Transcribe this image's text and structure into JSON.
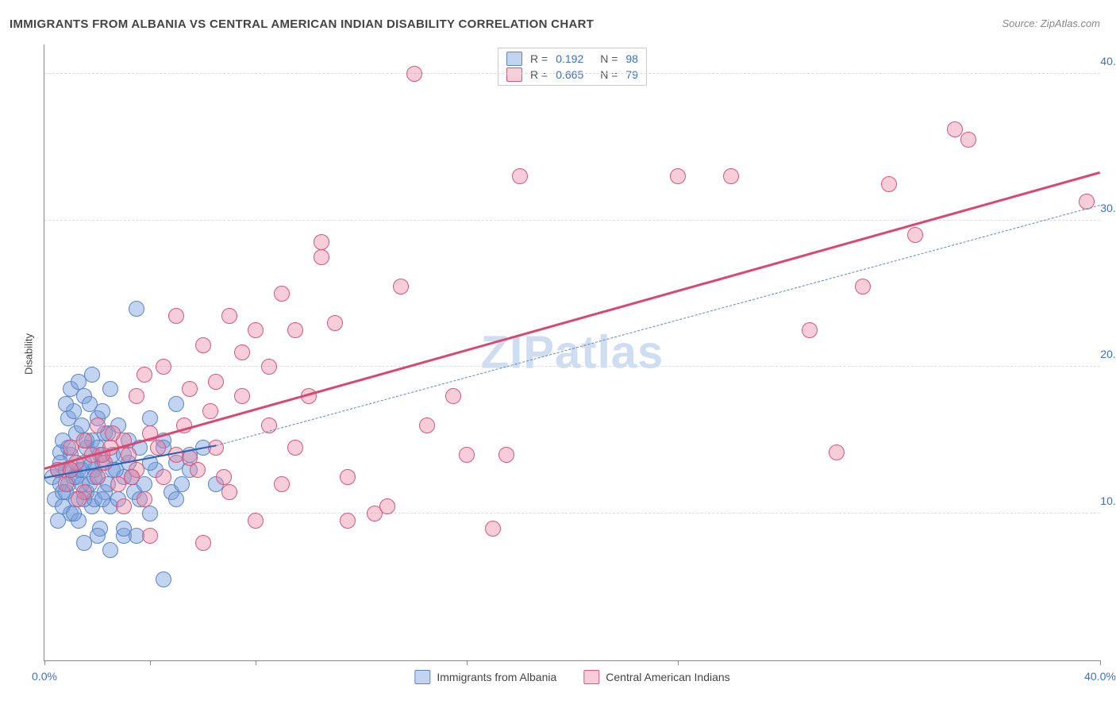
{
  "title": "IMMIGRANTS FROM ALBANIA VS CENTRAL AMERICAN INDIAN DISABILITY CORRELATION CHART",
  "source": "Source: ZipAtlas.com",
  "ylabel": "Disability",
  "watermark": "ZIPatlas",
  "chart": {
    "type": "scatter",
    "xlim": [
      0,
      40
    ],
    "ylim": [
      0,
      42
    ],
    "xtick_positions": [
      0,
      4,
      8,
      16,
      24,
      40
    ],
    "xtick_labels": {
      "0": "0.0%",
      "40": "40.0%"
    },
    "ytick_positions": [
      10,
      20,
      30,
      40
    ],
    "ytick_labels": [
      "10.0%",
      "20.0%",
      "30.0%",
      "40.0%"
    ],
    "grid_color": "#dddddd",
    "background_color": "#ffffff",
    "marker_radius": 9,
    "series": [
      {
        "name": "Immigrants from Albania",
        "key": "albania",
        "fill": "rgba(120,160,220,0.45)",
        "stroke": "#5a86c9",
        "R": "0.192",
        "N": "98",
        "trend": {
          "x1": 0,
          "y1": 12.4,
          "x2": 6.5,
          "y2": 14.6,
          "color": "#2f5fb0",
          "width": 2,
          "dash": false
        },
        "trend_ext": {
          "x1": 6.5,
          "y1": 14.6,
          "x2": 40,
          "y2": 31.0,
          "color": "#5a86c9",
          "width": 1.4,
          "dash": true
        },
        "points": [
          [
            0.3,
            12.5
          ],
          [
            0.4,
            11.0
          ],
          [
            0.5,
            13.0
          ],
          [
            0.6,
            12.0
          ],
          [
            0.6,
            14.2
          ],
          [
            0.7,
            10.5
          ],
          [
            0.7,
            15.0
          ],
          [
            0.8,
            11.5
          ],
          [
            0.8,
            13.0
          ],
          [
            0.9,
            16.5
          ],
          [
            0.9,
            12.0
          ],
          [
            1.0,
            10.0
          ],
          [
            1.0,
            14.0
          ],
          [
            1.1,
            17.0
          ],
          [
            1.1,
            12.5
          ],
          [
            1.2,
            11.0
          ],
          [
            1.2,
            15.5
          ],
          [
            1.3,
            13.0
          ],
          [
            1.3,
            9.5
          ],
          [
            1.4,
            16.0
          ],
          [
            1.4,
            12.0
          ],
          [
            1.5,
            18.0
          ],
          [
            1.5,
            13.5
          ],
          [
            1.6,
            11.5
          ],
          [
            1.6,
            14.5
          ],
          [
            1.7,
            12.0
          ],
          [
            1.7,
            17.5
          ],
          [
            1.8,
            10.5
          ],
          [
            1.8,
            15.0
          ],
          [
            1.9,
            13.0
          ],
          [
            1.9,
            11.0
          ],
          [
            2.0,
            16.5
          ],
          [
            2.0,
            12.5
          ],
          [
            2.1,
            14.0
          ],
          [
            2.1,
            9.0
          ],
          [
            2.2,
            13.5
          ],
          [
            2.2,
            17.0
          ],
          [
            2.3,
            11.5
          ],
          [
            2.3,
            15.5
          ],
          [
            2.4,
            12.0
          ],
          [
            2.5,
            18.5
          ],
          [
            2.5,
            10.5
          ],
          [
            2.6,
            14.0
          ],
          [
            2.6,
            13.0
          ],
          [
            2.8,
            11.0
          ],
          [
            2.8,
            16.0
          ],
          [
            3.0,
            12.5
          ],
          [
            3.0,
            8.5
          ],
          [
            3.2,
            15.0
          ],
          [
            3.2,
            13.5
          ],
          [
            3.4,
            11.5
          ],
          [
            3.6,
            14.5
          ],
          [
            3.8,
            12.0
          ],
          [
            4.0,
            16.5
          ],
          [
            4.0,
            10.0
          ],
          [
            4.2,
            13.0
          ],
          [
            4.5,
            15.0
          ],
          [
            4.8,
            11.5
          ],
          [
            5.0,
            17.5
          ],
          [
            5.0,
            13.5
          ],
          [
            5.2,
            12.0
          ],
          [
            5.5,
            14.0
          ],
          [
            3.5,
            24.0
          ],
          [
            1.0,
            18.5
          ],
          [
            1.3,
            19.0
          ],
          [
            1.5,
            8.0
          ],
          [
            1.8,
            19.5
          ],
          [
            2.0,
            8.5
          ],
          [
            2.5,
            7.5
          ],
          [
            0.5,
            9.5
          ],
          [
            0.8,
            17.5
          ],
          [
            4.5,
            5.5
          ],
          [
            3.0,
            9.0
          ],
          [
            3.5,
            8.5
          ],
          [
            1.0,
            13.0
          ],
          [
            1.2,
            12.5
          ],
          [
            1.5,
            11.0
          ],
          [
            1.8,
            13.5
          ],
          [
            2.0,
            14.5
          ],
          [
            0.7,
            11.5
          ],
          [
            0.6,
            13.5
          ],
          [
            0.9,
            14.5
          ],
          [
            1.1,
            10.0
          ],
          [
            1.4,
            13.0
          ],
          [
            1.6,
            15.0
          ],
          [
            1.9,
            12.5
          ],
          [
            2.2,
            11.0
          ],
          [
            2.4,
            15.5
          ],
          [
            2.7,
            13.0
          ],
          [
            3.0,
            14.0
          ],
          [
            3.3,
            12.5
          ],
          [
            3.6,
            11.0
          ],
          [
            4.0,
            13.5
          ],
          [
            4.5,
            14.5
          ],
          [
            5.0,
            11.0
          ],
          [
            5.5,
            13.0
          ],
          [
            6.0,
            14.5
          ],
          [
            6.5,
            12.0
          ]
        ]
      },
      {
        "name": "Central American Indians",
        "key": "central",
        "fill": "rgba(235,130,160,0.40)",
        "stroke": "#d4577f",
        "R": "0.665",
        "N": "79",
        "trend": {
          "x1": 0,
          "y1": 13.0,
          "x2": 40,
          "y2": 33.2,
          "color": "#d9486f",
          "width": 2.5,
          "dash": false
        },
        "points": [
          [
            0.5,
            13.0
          ],
          [
            0.8,
            12.0
          ],
          [
            1.0,
            14.5
          ],
          [
            1.2,
            13.5
          ],
          [
            1.5,
            15.0
          ],
          [
            1.5,
            11.5
          ],
          [
            1.8,
            14.0
          ],
          [
            2.0,
            12.5
          ],
          [
            2.0,
            16.0
          ],
          [
            2.3,
            13.5
          ],
          [
            2.5,
            14.5
          ],
          [
            2.8,
            12.0
          ],
          [
            3.0,
            15.0
          ],
          [
            3.0,
            10.5
          ],
          [
            3.2,
            14.0
          ],
          [
            3.5,
            18.0
          ],
          [
            3.5,
            13.0
          ],
          [
            3.8,
            11.0
          ],
          [
            4.0,
            15.5
          ],
          [
            4.0,
            8.5
          ],
          [
            4.5,
            20.0
          ],
          [
            4.5,
            12.5
          ],
          [
            5.0,
            23.5
          ],
          [
            5.0,
            14.0
          ],
          [
            5.5,
            18.5
          ],
          [
            5.5,
            13.8
          ],
          [
            6.0,
            21.5
          ],
          [
            6.0,
            8.0
          ],
          [
            6.5,
            14.5
          ],
          [
            6.5,
            19.0
          ],
          [
            7.0,
            23.5
          ],
          [
            7.0,
            11.5
          ],
          [
            7.5,
            21.0
          ],
          [
            7.5,
            18.0
          ],
          [
            8.0,
            22.5
          ],
          [
            8.0,
            9.5
          ],
          [
            8.5,
            16.0
          ],
          [
            9.0,
            25.0
          ],
          [
            9.0,
            12.0
          ],
          [
            9.5,
            22.5
          ],
          [
            10.0,
            18.0
          ],
          [
            10.5,
            28.5
          ],
          [
            10.5,
            27.5
          ],
          [
            11.0,
            23.0
          ],
          [
            11.5,
            9.5
          ],
          [
            12.5,
            10.0
          ],
          [
            13.0,
            10.5
          ],
          [
            13.5,
            25.5
          ],
          [
            14.0,
            40.0
          ],
          [
            14.5,
            16.0
          ],
          [
            15.5,
            18.0
          ],
          [
            16.0,
            14.0
          ],
          [
            17.0,
            9.0
          ],
          [
            17.5,
            14.0
          ],
          [
            18.0,
            33.0
          ],
          [
            24.0,
            33.0
          ],
          [
            26.0,
            33.0
          ],
          [
            29.0,
            22.5
          ],
          [
            30.0,
            14.2
          ],
          [
            31.0,
            25.5
          ],
          [
            32.0,
            32.5
          ],
          [
            33.0,
            29.0
          ],
          [
            34.5,
            36.2
          ],
          [
            35.0,
            35.5
          ],
          [
            39.5,
            31.3
          ],
          [
            1.0,
            13.0
          ],
          [
            1.3,
            11.0
          ],
          [
            2.2,
            14.0
          ],
          [
            2.6,
            15.5
          ],
          [
            3.3,
            12.5
          ],
          [
            3.8,
            19.5
          ],
          [
            4.3,
            14.5
          ],
          [
            5.3,
            16.0
          ],
          [
            5.8,
            13.0
          ],
          [
            6.3,
            17.0
          ],
          [
            6.8,
            12.5
          ],
          [
            8.5,
            20.0
          ],
          [
            9.5,
            14.5
          ],
          [
            11.5,
            12.5
          ]
        ]
      }
    ]
  },
  "r_legend": {
    "rows": [
      {
        "swatch_fill": "rgba(120,160,220,0.45)",
        "swatch_stroke": "#5a86c9",
        "r_label": "R =",
        "r_val": "0.192",
        "n_label": "N =",
        "n_val": "98"
      },
      {
        "swatch_fill": "rgba(235,130,160,0.40)",
        "swatch_stroke": "#d4577f",
        "r_label": "R =",
        "r_val": "0.665",
        "n_label": "N =",
        "n_val": "79"
      }
    ]
  },
  "bottom_legend": [
    {
      "swatch_fill": "rgba(120,160,220,0.45)",
      "swatch_stroke": "#5a86c9",
      "label": "Immigrants from Albania"
    },
    {
      "swatch_fill": "rgba(235,130,160,0.40)",
      "swatch_stroke": "#d4577f",
      "label": "Central American Indians"
    }
  ]
}
